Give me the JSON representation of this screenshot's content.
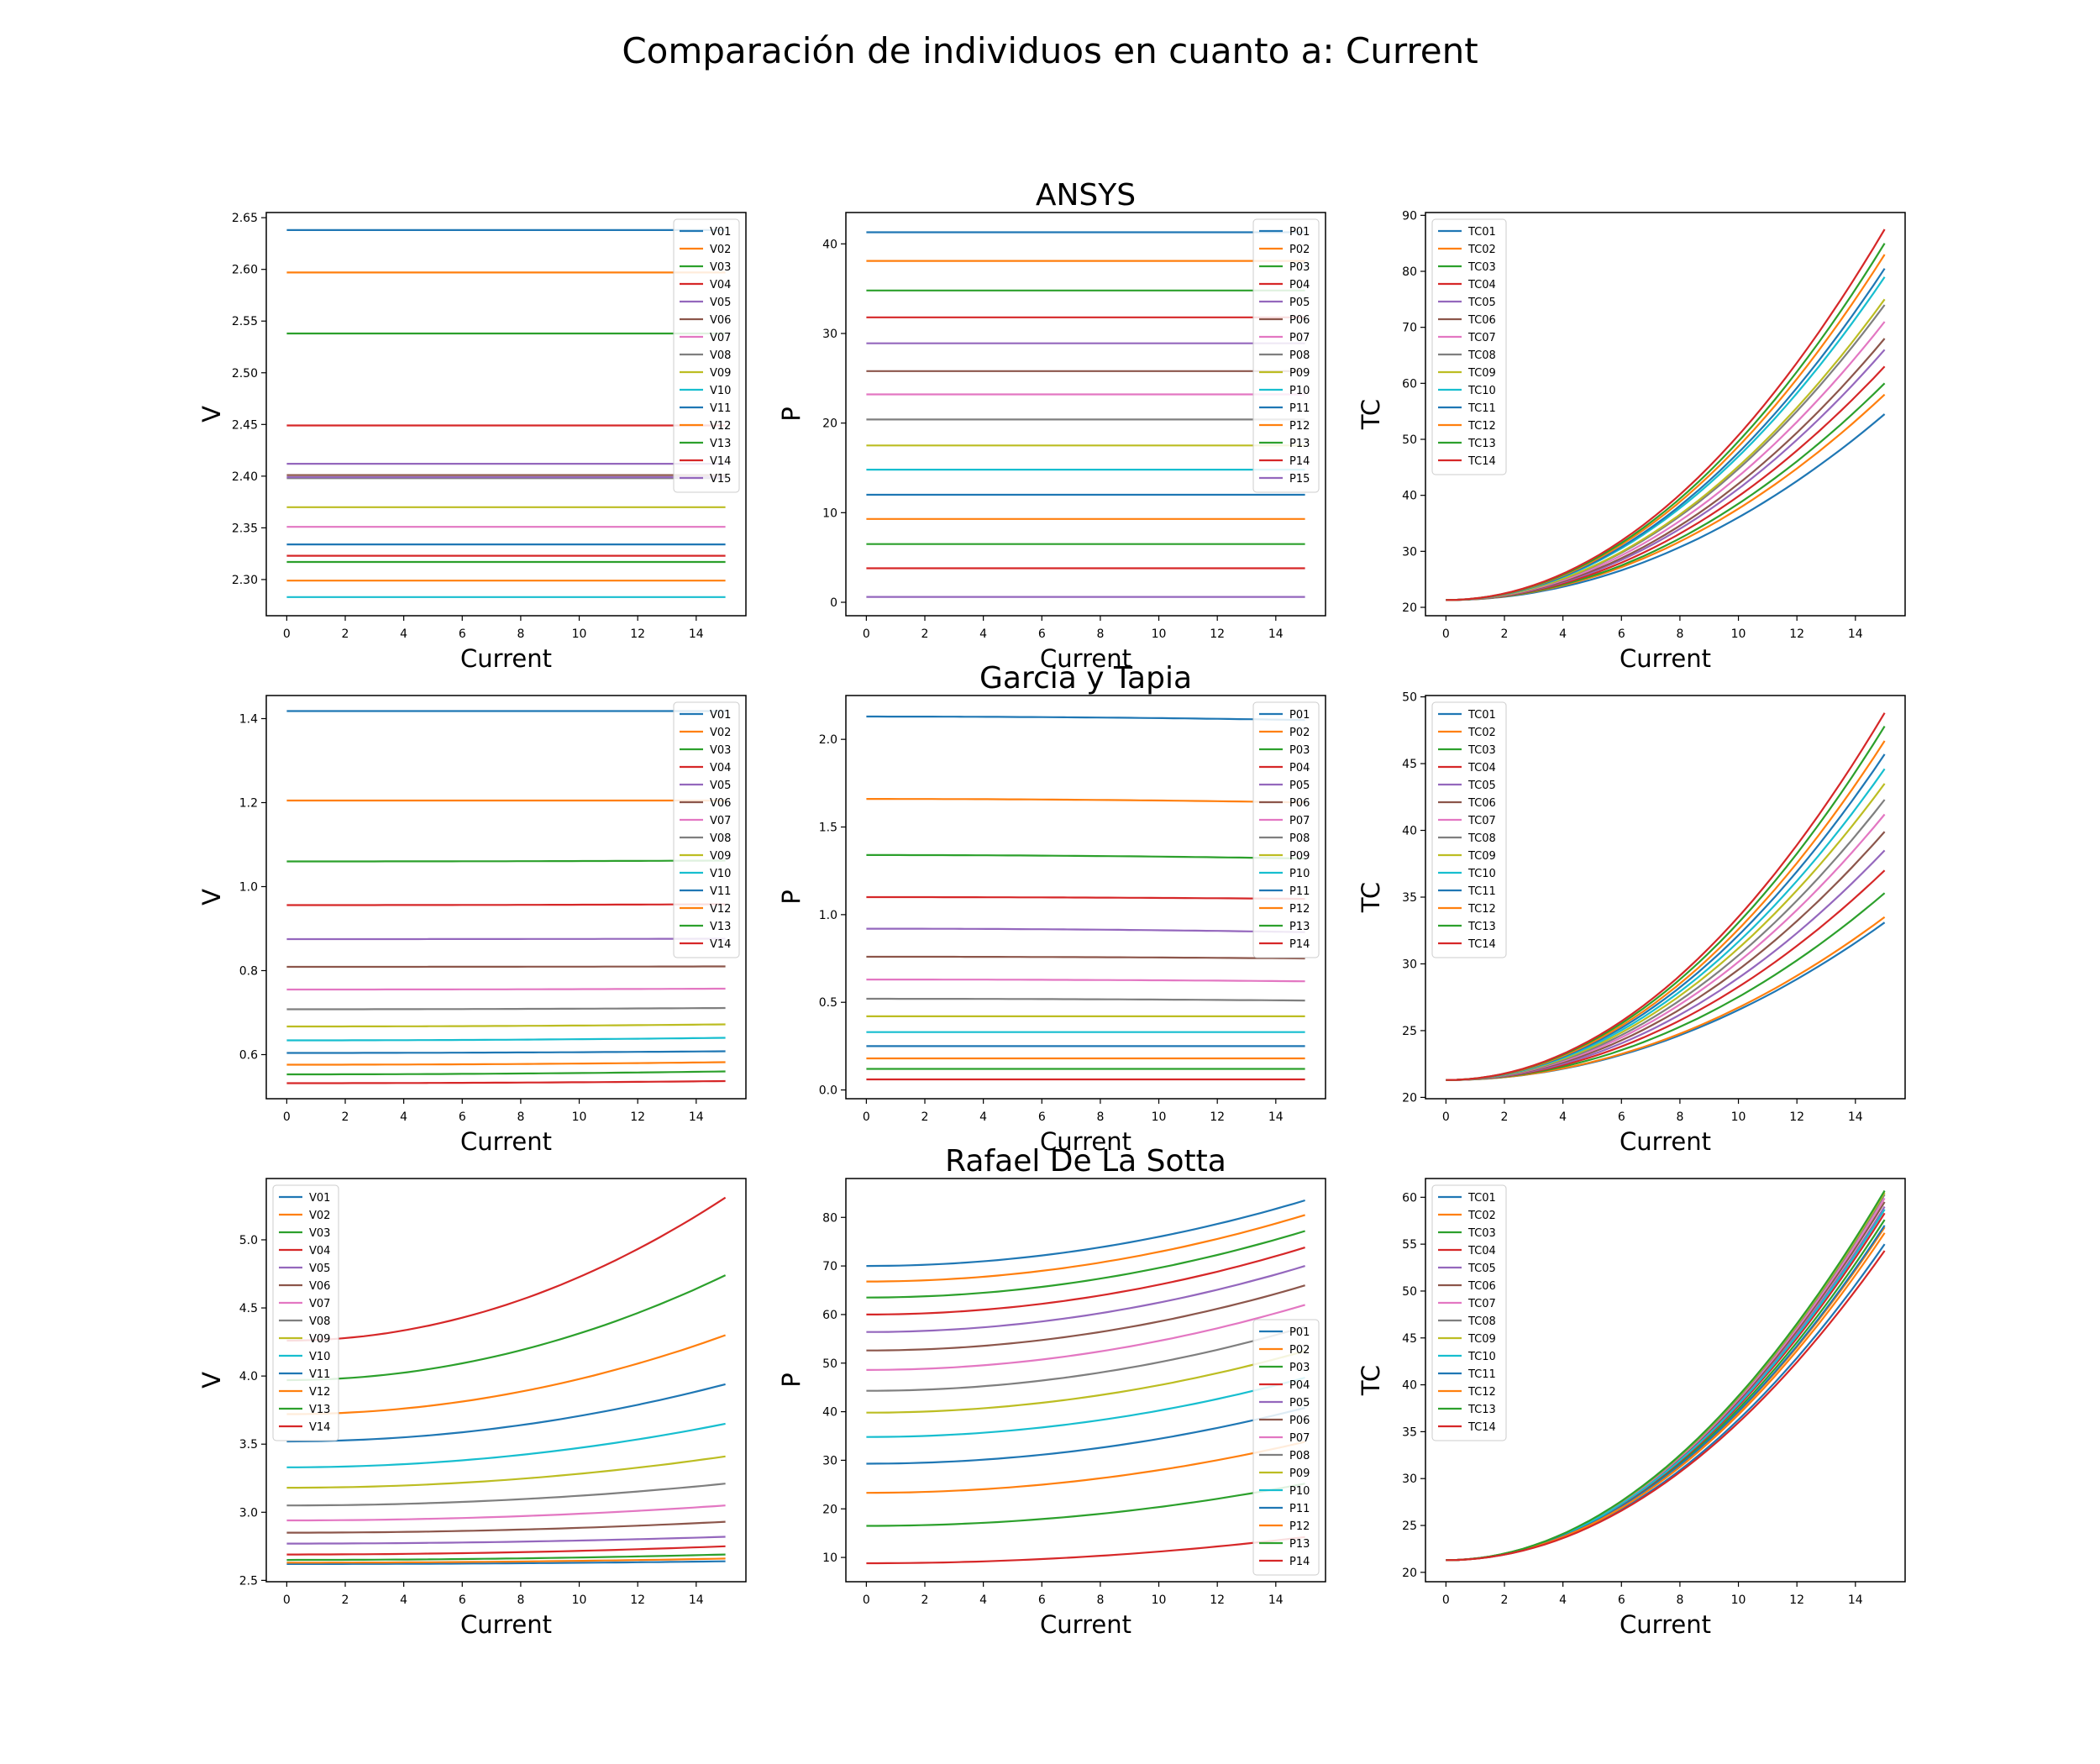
{
  "figure_title": "Comparación de individuos en cuanto a: Current",
  "colors": [
    "#1f77b4",
    "#ff7f0e",
    "#2ca02c",
    "#d62728",
    "#9467bd",
    "#8c564b",
    "#e377c2",
    "#7f7f7f",
    "#bcbd22",
    "#17becf"
  ],
  "chart_data": [
    {
      "type": "line",
      "section": "",
      "xlabel": "Current",
      "ylabel": "V",
      "xlim": [
        -0.7,
        15.7
      ],
      "ylim": [
        2.265,
        2.655
      ],
      "xticks": [
        "0",
        "2",
        "4",
        "6",
        "8",
        "10",
        "12",
        "14"
      ],
      "yticks": [
        "2.30",
        "2.35",
        "2.40",
        "2.45",
        "2.50",
        "2.55",
        "2.60",
        "2.65"
      ],
      "legend": "top-right",
      "series": [
        {
          "name": "V01",
          "values": [
            2.638,
            2.638
          ]
        },
        {
          "name": "V02",
          "values": [
            2.597,
            2.597
          ]
        },
        {
          "name": "V03",
          "values": [
            2.538,
            2.538
          ]
        },
        {
          "name": "V04",
          "values": [
            2.449,
            2.449
          ]
        },
        {
          "name": "V05",
          "values": [
            2.412,
            2.412
          ]
        },
        {
          "name": "V06",
          "values": [
            2.401,
            2.401
          ]
        },
        {
          "name": "V07",
          "values": [
            2.351,
            2.351
          ]
        },
        {
          "name": "V08",
          "values": [
            2.398,
            2.398
          ]
        },
        {
          "name": "V09",
          "values": [
            2.37,
            2.37
          ]
        },
        {
          "name": "V10",
          "values": [
            2.283,
            2.283
          ]
        },
        {
          "name": "V11",
          "values": [
            2.334,
            2.334
          ]
        },
        {
          "name": "V12",
          "values": [
            2.299,
            2.299
          ]
        },
        {
          "name": "V13",
          "values": [
            2.317,
            2.317
          ]
        },
        {
          "name": "V14",
          "values": [
            2.323,
            2.323
          ]
        },
        {
          "name": "V15",
          "values": [
            2.399,
            2.399
          ]
        }
      ]
    },
    {
      "type": "line",
      "section": "ANSYS",
      "xlabel": "Current",
      "ylabel": "P",
      "xlim": [
        -0.7,
        15.7
      ],
      "ylim": [
        -1.5,
        43.5
      ],
      "xticks": [
        "0",
        "2",
        "4",
        "6",
        "8",
        "10",
        "12",
        "14"
      ],
      "yticks": [
        "0",
        "10",
        "20",
        "30",
        "40"
      ],
      "legend": "top-right",
      "series": [
        {
          "name": "P01",
          "values": [
            41.3,
            41.3
          ]
        },
        {
          "name": "P02",
          "values": [
            38.1,
            38.1
          ]
        },
        {
          "name": "P03",
          "values": [
            34.8,
            34.8
          ]
        },
        {
          "name": "P04",
          "values": [
            31.8,
            31.8
          ]
        },
        {
          "name": "P05",
          "values": [
            28.9,
            28.9
          ]
        },
        {
          "name": "P06",
          "values": [
            25.8,
            25.8
          ]
        },
        {
          "name": "P07",
          "values": [
            23.2,
            23.2
          ]
        },
        {
          "name": "P08",
          "values": [
            20.4,
            20.4
          ]
        },
        {
          "name": "P09",
          "values": [
            17.5,
            17.5
          ]
        },
        {
          "name": "P10",
          "values": [
            14.8,
            14.8
          ]
        },
        {
          "name": "P11",
          "values": [
            12.0,
            12.0
          ]
        },
        {
          "name": "P12",
          "values": [
            9.3,
            9.3
          ]
        },
        {
          "name": "P13",
          "values": [
            6.5,
            6.5
          ]
        },
        {
          "name": "P14",
          "values": [
            3.8,
            3.8
          ]
        },
        {
          "name": "P15",
          "values": [
            0.6,
            0.6
          ]
        }
      ]
    },
    {
      "type": "line",
      "section": "",
      "xlabel": "Current",
      "ylabel": "TC",
      "xlim": [
        -0.7,
        15.7
      ],
      "ylim": [
        18.5,
        90.5
      ],
      "xticks": [
        "0",
        "2",
        "4",
        "6",
        "8",
        "10",
        "12",
        "14"
      ],
      "yticks": [
        "20",
        "30",
        "40",
        "50",
        "60",
        "70",
        "80",
        "90"
      ],
      "legend": "top-left",
      "series": [
        {
          "name": "TC01",
          "values": [
            21.3,
            54.5
          ]
        },
        {
          "name": "TC02",
          "values": [
            21.3,
            58.0
          ]
        },
        {
          "name": "TC03",
          "values": [
            21.3,
            60.0
          ]
        },
        {
          "name": "TC04",
          "values": [
            21.3,
            63.0
          ]
        },
        {
          "name": "TC05",
          "values": [
            21.3,
            66.0
          ]
        },
        {
          "name": "TC06",
          "values": [
            21.3,
            68.0
          ]
        },
        {
          "name": "TC07",
          "values": [
            21.3,
            71.0
          ]
        },
        {
          "name": "TC08",
          "values": [
            21.3,
            74.0
          ]
        },
        {
          "name": "TC09",
          "values": [
            21.3,
            75.0
          ]
        },
        {
          "name": "TC10",
          "values": [
            21.3,
            79.0
          ]
        },
        {
          "name": "TC11",
          "values": [
            21.3,
            80.5
          ]
        },
        {
          "name": "TC12",
          "values": [
            21.3,
            83.0
          ]
        },
        {
          "name": "TC13",
          "values": [
            21.3,
            85.0
          ]
        },
        {
          "name": "TC14",
          "values": [
            21.3,
            87.5
          ]
        }
      ]
    },
    {
      "type": "line",
      "section": "",
      "xlabel": "Current",
      "ylabel": "V",
      "xlim": [
        -0.7,
        15.7
      ],
      "ylim": [
        0.495,
        1.455
      ],
      "xticks": [
        "0",
        "2",
        "4",
        "6",
        "8",
        "10",
        "12",
        "14"
      ],
      "yticks": [
        "0.6",
        "0.8",
        "1.0",
        "1.2",
        "1.4"
      ],
      "legend": "top-right",
      "series": [
        {
          "name": "V01",
          "values": [
            1.418,
            1.418
          ]
        },
        {
          "name": "V02",
          "values": [
            1.205,
            1.205
          ]
        },
        {
          "name": "V03",
          "values": [
            1.06,
            1.062
          ]
        },
        {
          "name": "V04",
          "values": [
            0.956,
            0.958
          ]
        },
        {
          "name": "V05",
          "values": [
            0.875,
            0.876
          ]
        },
        {
          "name": "V06",
          "values": [
            0.809,
            0.81
          ]
        },
        {
          "name": "V07",
          "values": [
            0.755,
            0.757
          ]
        },
        {
          "name": "V08",
          "values": [
            0.708,
            0.711
          ]
        },
        {
          "name": "V09",
          "values": [
            0.667,
            0.672
          ]
        },
        {
          "name": "V10",
          "values": [
            0.634,
            0.64
          ]
        },
        {
          "name": "V11",
          "values": [
            0.604,
            0.608
          ]
        },
        {
          "name": "V12",
          "values": [
            0.576,
            0.582
          ]
        },
        {
          "name": "V13",
          "values": [
            0.553,
            0.56
          ]
        },
        {
          "name": "V14",
          "values": [
            0.532,
            0.537
          ]
        }
      ]
    },
    {
      "type": "line",
      "section": "Garcia y Tapia",
      "xlabel": "Current",
      "ylabel": "P",
      "xlim": [
        -0.7,
        15.7
      ],
      "ylim": [
        -0.05,
        2.25
      ],
      "xticks": [
        "0",
        "2",
        "4",
        "6",
        "8",
        "10",
        "12",
        "14"
      ],
      "yticks": [
        "0.0",
        "0.5",
        "1.0",
        "1.5",
        "2.0"
      ],
      "legend": "top-right",
      "series": [
        {
          "name": "P01",
          "values": [
            2.13,
            2.11
          ]
        },
        {
          "name": "P02",
          "values": [
            1.66,
            1.64
          ]
        },
        {
          "name": "P03",
          "values": [
            1.34,
            1.32
          ]
        },
        {
          "name": "P04",
          "values": [
            1.1,
            1.09
          ]
        },
        {
          "name": "P05",
          "values": [
            0.92,
            0.9
          ]
        },
        {
          "name": "P06",
          "values": [
            0.76,
            0.75
          ]
        },
        {
          "name": "P07",
          "values": [
            0.63,
            0.62
          ]
        },
        {
          "name": "P08",
          "values": [
            0.52,
            0.51
          ]
        },
        {
          "name": "P09",
          "values": [
            0.42,
            0.42
          ]
        },
        {
          "name": "P10",
          "values": [
            0.33,
            0.33
          ]
        },
        {
          "name": "P11",
          "values": [
            0.25,
            0.25
          ]
        },
        {
          "name": "P12",
          "values": [
            0.18,
            0.18
          ]
        },
        {
          "name": "P13",
          "values": [
            0.12,
            0.12
          ]
        },
        {
          "name": "P14",
          "values": [
            0.06,
            0.06
          ]
        }
      ]
    },
    {
      "type": "line",
      "section": "",
      "xlabel": "Current",
      "ylabel": "TC",
      "xlim": [
        -0.7,
        15.7
      ],
      "ylim": [
        19.9,
        50.1
      ],
      "xticks": [
        "0",
        "2",
        "4",
        "6",
        "8",
        "10",
        "12",
        "14"
      ],
      "yticks": [
        "20",
        "25",
        "30",
        "35",
        "40",
        "45",
        "50"
      ],
      "legend": "top-left",
      "series": [
        {
          "name": "TC01",
          "values": [
            21.3,
            33.1
          ]
        },
        {
          "name": "TC02",
          "values": [
            21.3,
            33.5
          ]
        },
        {
          "name": "TC03",
          "values": [
            21.3,
            35.3
          ]
        },
        {
          "name": "TC04",
          "values": [
            21.3,
            37.0
          ]
        },
        {
          "name": "TC05",
          "values": [
            21.3,
            38.5
          ]
        },
        {
          "name": "TC06",
          "values": [
            21.3,
            39.9
          ]
        },
        {
          "name": "TC07",
          "values": [
            21.3,
            41.2
          ]
        },
        {
          "name": "TC08",
          "values": [
            21.3,
            42.3
          ]
        },
        {
          "name": "TC09",
          "values": [
            21.3,
            43.5
          ]
        },
        {
          "name": "TC10",
          "values": [
            21.3,
            44.6
          ]
        },
        {
          "name": "TC11",
          "values": [
            21.3,
            45.7
          ]
        },
        {
          "name": "TC12",
          "values": [
            21.3,
            46.7
          ]
        },
        {
          "name": "TC13",
          "values": [
            21.3,
            47.8
          ]
        },
        {
          "name": "TC14",
          "values": [
            21.3,
            48.8
          ]
        }
      ]
    },
    {
      "type": "line",
      "section": "",
      "xlabel": "Current",
      "ylabel": "V",
      "xlim": [
        -0.7,
        15.7
      ],
      "ylim": [
        2.49,
        5.45
      ],
      "xticks": [
        "0",
        "2",
        "4",
        "6",
        "8",
        "10",
        "12",
        "14"
      ],
      "yticks": [
        "2.5",
        "3.0",
        "3.5",
        "4.0",
        "4.5",
        "5.0"
      ],
      "legend": "top-left",
      "series": [
        {
          "name": "V01",
          "values": [
            2.62,
            2.64
          ]
        },
        {
          "name": "V02",
          "values": [
            2.63,
            2.66
          ]
        },
        {
          "name": "V03",
          "values": [
            2.65,
            2.69
          ]
        },
        {
          "name": "V04",
          "values": [
            2.69,
            2.75
          ]
        },
        {
          "name": "V05",
          "values": [
            2.77,
            2.82
          ]
        },
        {
          "name": "V06",
          "values": [
            2.85,
            2.93
          ]
        },
        {
          "name": "V07",
          "values": [
            2.94,
            3.05
          ]
        },
        {
          "name": "V08",
          "values": [
            3.05,
            3.21
          ]
        },
        {
          "name": "V09",
          "values": [
            3.18,
            3.41
          ]
        },
        {
          "name": "V10",
          "values": [
            3.33,
            3.65
          ]
        },
        {
          "name": "V11",
          "values": [
            3.52,
            3.94
          ]
        },
        {
          "name": "V12",
          "values": [
            3.72,
            4.3
          ]
        },
        {
          "name": "V13",
          "values": [
            3.97,
            4.74
          ]
        },
        {
          "name": "V14",
          "values": [
            4.26,
            5.31
          ]
        }
      ]
    },
    {
      "type": "line",
      "section": "Rafael De La Sotta",
      "xlabel": "Current",
      "ylabel": "P",
      "xlim": [
        -0.7,
        15.7
      ],
      "ylim": [
        5.0,
        88.0
      ],
      "xticks": [
        "0",
        "2",
        "4",
        "6",
        "8",
        "10",
        "12",
        "14"
      ],
      "yticks": [
        "10",
        "20",
        "30",
        "40",
        "50",
        "60",
        "70",
        "80"
      ],
      "legend": "lower-right",
      "series": [
        {
          "name": "P01",
          "values": [
            70.0,
            83.5
          ]
        },
        {
          "name": "P02",
          "values": [
            66.8,
            80.5
          ]
        },
        {
          "name": "P03",
          "values": [
            63.5,
            77.2
          ]
        },
        {
          "name": "P04",
          "values": [
            60.0,
            73.8
          ]
        },
        {
          "name": "P05",
          "values": [
            56.4,
            70.0
          ]
        },
        {
          "name": "P06",
          "values": [
            52.6,
            66.0
          ]
        },
        {
          "name": "P07",
          "values": [
            48.6,
            62.0
          ]
        },
        {
          "name": "P08",
          "values": [
            44.3,
            57.5
          ]
        },
        {
          "name": "P09",
          "values": [
            39.8,
            52.5
          ]
        },
        {
          "name": "P10",
          "values": [
            34.8,
            47.0
          ]
        },
        {
          "name": "P11",
          "values": [
            29.3,
            40.8
          ]
        },
        {
          "name": "P12",
          "values": [
            23.3,
            33.8
          ]
        },
        {
          "name": "P13",
          "values": [
            16.5,
            25.2
          ]
        },
        {
          "name": "P14",
          "values": [
            8.8,
            14.2
          ]
        }
      ]
    },
    {
      "type": "line",
      "section": "",
      "xlabel": "Current",
      "ylabel": "TC",
      "xlim": [
        -0.7,
        15.7
      ],
      "ylim": [
        19.0,
        62.0
      ],
      "xticks": [
        "0",
        "2",
        "4",
        "6",
        "8",
        "10",
        "12",
        "14"
      ],
      "yticks": [
        "20",
        "25",
        "30",
        "35",
        "40",
        "45",
        "50",
        "55",
        "60"
      ],
      "legend": "top-left",
      "series": [
        {
          "name": "TC01",
          "values": [
            21.3,
            55.0
          ]
        },
        {
          "name": "TC02",
          "values": [
            21.3,
            56.8
          ]
        },
        {
          "name": "TC03",
          "values": [
            21.3,
            57.6
          ]
        },
        {
          "name": "TC04",
          "values": [
            21.3,
            58.3
          ]
        },
        {
          "name": "TC05",
          "values": [
            21.3,
            59.0
          ]
        },
        {
          "name": "TC06",
          "values": [
            21.3,
            59.5
          ]
        },
        {
          "name": "TC07",
          "values": [
            21.3,
            59.9
          ]
        },
        {
          "name": "TC08",
          "values": [
            21.3,
            60.3
          ]
        },
        {
          "name": "TC09",
          "values": [
            21.3,
            60.5
          ]
        },
        {
          "name": "TC10",
          "values": [
            21.3,
            58.7
          ]
        },
        {
          "name": "TC11",
          "values": [
            21.3,
            57.0
          ]
        },
        {
          "name": "TC12",
          "values": [
            21.3,
            56.2
          ]
        },
        {
          "name": "TC13",
          "values": [
            21.3,
            60.7
          ]
        },
        {
          "name": "TC14",
          "values": [
            21.3,
            54.3
          ]
        }
      ]
    }
  ]
}
